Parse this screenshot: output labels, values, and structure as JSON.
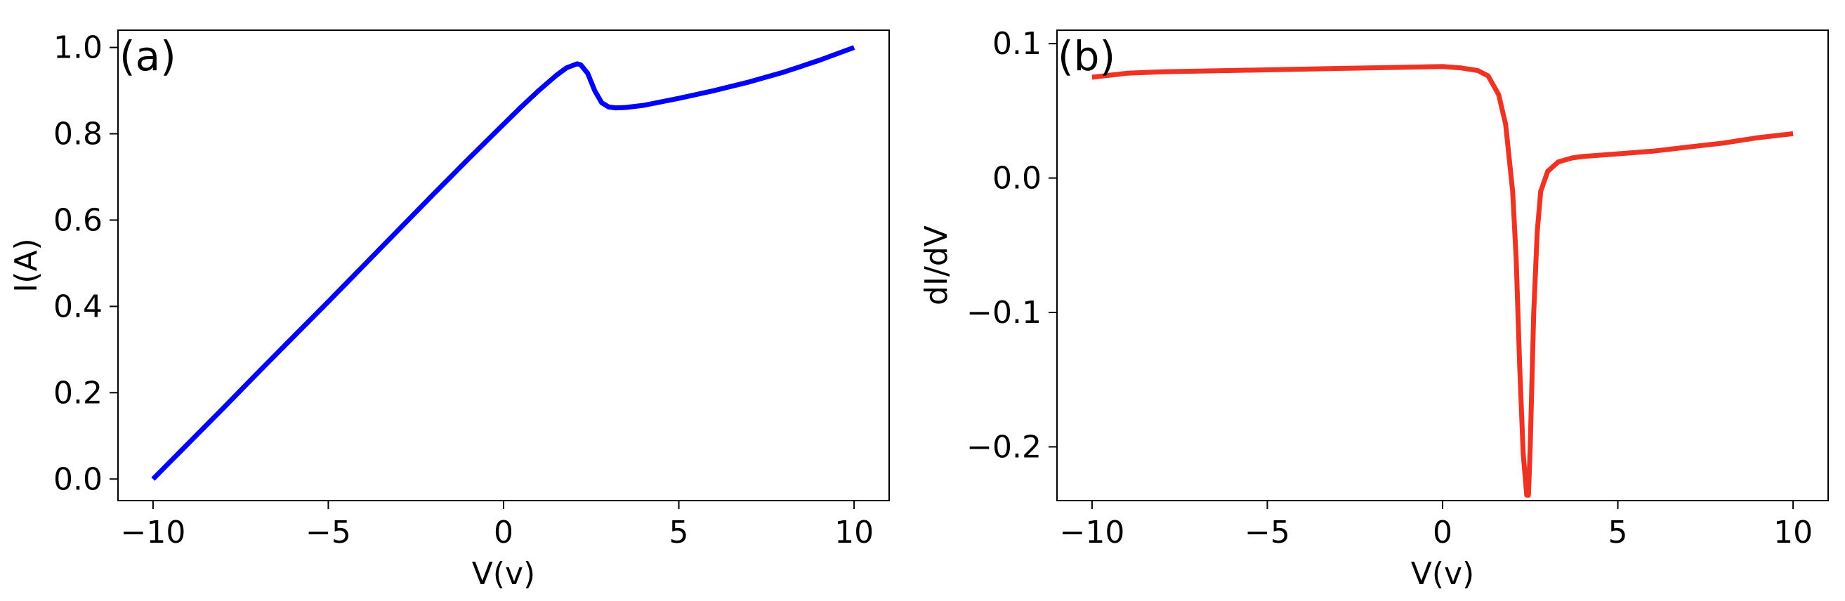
{
  "chart_data": [
    {
      "type": "line",
      "panel_label": "(a)",
      "xlabel": "V(v)",
      "ylabel": "I(A)",
      "xlim": [
        -11,
        11
      ],
      "ylim": [
        -0.05,
        1.04
      ],
      "xticks": [
        -10,
        -5,
        0,
        5,
        10
      ],
      "xtick_labels": [
        "−10",
        "−5",
        "0",
        "5",
        "10"
      ],
      "yticks": [
        0.0,
        0.2,
        0.4,
        0.6,
        0.8,
        1.0
      ],
      "ytick_labels": [
        "0.0",
        "0.2",
        "0.4",
        "0.6",
        "0.8",
        "1.0"
      ],
      "grid": false,
      "series": [
        {
          "color": "#0000ff",
          "x": [
            -10,
            -9,
            -8,
            -7,
            -6,
            -5,
            -4,
            -3,
            -2,
            -1,
            0,
            0.5,
            1,
            1.5,
            1.8,
            2.1,
            2.2,
            2.4,
            2.6,
            2.8,
            3.0,
            3.2,
            3.5,
            4,
            5,
            6,
            7,
            8,
            9,
            10
          ],
          "y": [
            0.0,
            0.082,
            0.164,
            0.247,
            0.329,
            0.411,
            0.494,
            0.577,
            0.66,
            0.742,
            0.822,
            0.862,
            0.9,
            0.935,
            0.953,
            0.962,
            0.96,
            0.94,
            0.9,
            0.872,
            0.862,
            0.86,
            0.861,
            0.866,
            0.882,
            0.9,
            0.92,
            0.943,
            0.97,
            1.0
          ]
        }
      ]
    },
    {
      "type": "line",
      "panel_label": "(b)",
      "xlabel": "V(v)",
      "ylabel": "dI/dV",
      "xlim": [
        -11,
        11
      ],
      "ylim": [
        -0.24,
        0.11
      ],
      "xticks": [
        -10,
        -5,
        0,
        5,
        10
      ],
      "xtick_labels": [
        "−10",
        "−5",
        "0",
        "5",
        "10"
      ],
      "yticks": [
        -0.2,
        -0.1,
        0.0,
        0.1
      ],
      "ytick_labels": [
        "−0.2",
        "−0.1",
        "0.0",
        "0.1"
      ],
      "grid": false,
      "series": [
        {
          "color": "#ee3322",
          "x": [
            -10,
            -9,
            -8,
            -6,
            -4,
            -2,
            0,
            0.5,
            1.0,
            1.3,
            1.6,
            1.8,
            2.0,
            2.1,
            2.2,
            2.3,
            2.4,
            2.45,
            2.5,
            2.6,
            2.7,
            2.8,
            3.0,
            3.3,
            3.7,
            4.0,
            5,
            6,
            7,
            8,
            9,
            10
          ],
          "y": [
            0.075,
            0.078,
            0.079,
            0.08,
            0.081,
            0.082,
            0.083,
            0.082,
            0.08,
            0.076,
            0.062,
            0.04,
            -0.01,
            -0.06,
            -0.14,
            -0.205,
            -0.236,
            -0.236,
            -0.2,
            -0.1,
            -0.04,
            -0.01,
            0.005,
            0.012,
            0.015,
            0.016,
            0.018,
            0.02,
            0.023,
            0.026,
            0.03,
            0.033
          ]
        }
      ]
    }
  ]
}
